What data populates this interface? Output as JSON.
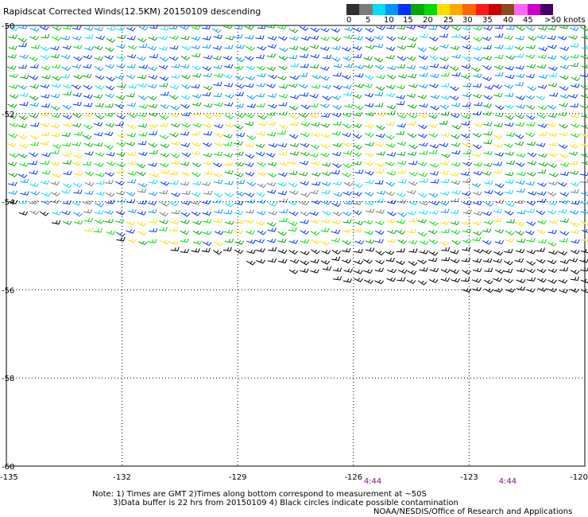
{
  "title": "Rapidscat Corrected Winds(12.5KM) 20150109 descending",
  "legend": {
    "colors": [
      "#303030",
      "#7a7a7a",
      "#00ddff",
      "#0098ff",
      "#0030ff",
      "#00aa00",
      "#00dd00",
      "#ffdd00",
      "#ffaa00",
      "#ff6600",
      "#ff1a1a",
      "#c80000",
      "#8a4a1a",
      "#ff66ff",
      "#cc00cc",
      "#440066"
    ],
    "labels": [
      "0",
      "5",
      "10",
      "15",
      "20",
      "25",
      "30",
      "35",
      "40",
      "45",
      ">50 knots"
    ]
  },
  "chart_data": {
    "type": "scatter",
    "title": "Rapidscat Corrected Winds(12.5KM) 20150109 descending",
    "x_ticks": [
      "-135",
      "-132",
      "-129",
      "-126",
      "-123",
      "-120"
    ],
    "y_ticks": [
      "-50",
      "-52",
      "-54",
      "-56",
      "-58",
      "-60"
    ],
    "xlim": [
      -135,
      -120
    ],
    "ylim": [
      -60,
      -50
    ],
    "grid": true,
    "wind_speed_scale_knots": [
      0,
      5,
      10,
      15,
      20,
      25,
      30,
      35,
      40,
      45,
      50
    ],
    "swath_edge_lat_at_lon": [
      [
        -135,
        -54.2
      ],
      [
        -132,
        -55.0
      ],
      [
        -129,
        -55.3
      ],
      [
        -126,
        -55.9
      ],
      [
        -123,
        -56.0
      ],
      [
        -120,
        -56.1
      ]
    ],
    "speed_bands_by_latitude": [
      {
        "lat_range": [
          -52.0,
          -50.0
        ],
        "speed_knots": 15
      },
      {
        "lat_range": [
          -53.5,
          -52.0
        ],
        "speed_knots": 20
      },
      {
        "lat_range": [
          -54.3,
          -53.5
        ],
        "speed_knots": 10
      },
      {
        "lat_range": [
          -55.0,
          -54.3
        ],
        "speed_knots": 20
      },
      {
        "lat_range": [
          -56.1,
          -55.0
        ],
        "speed_knots": 0
      }
    ],
    "pass_times": [
      {
        "lon": -125.5,
        "text": "4:44"
      },
      {
        "lon": -122.0,
        "text": "4:44"
      }
    ]
  },
  "notes": {
    "line1": "Note: 1) Times are GMT 2)Times along bottom correspond to measurement at ~50S",
    "line2": "3)Data buffer is 22 hrs from 20150109 4) Black circles indicate possible contamination",
    "credit": "NOAA/NESDIS/Office of Research and Applications"
  }
}
